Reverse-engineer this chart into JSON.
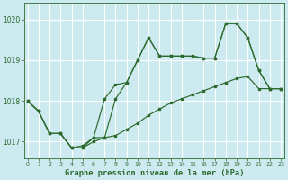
{
  "title": "Graphe pression niveau de la mer (hPa)",
  "background_color": "#cceaf0",
  "grid_color": "#ffffff",
  "line_color": "#2d6a2d",
  "x_ticks": [
    0,
    1,
    2,
    3,
    4,
    5,
    6,
    7,
    8,
    9,
    10,
    11,
    12,
    13,
    14,
    15,
    16,
    17,
    18,
    19,
    20,
    21,
    22,
    23
  ],
  "y_ticks": [
    1017,
    1018,
    1019,
    1020
  ],
  "ylim": [
    1016.6,
    1020.4
  ],
  "xlim": [
    -0.3,
    23.3
  ],
  "series": {
    "line1": [
      1018.0,
      1017.75,
      1017.2,
      1017.2,
      1016.85,
      1016.85,
      1017.1,
      1017.1,
      1018.05,
      1018.45,
      1019.0,
      1019.55,
      1019.1,
      1019.1,
      1019.1,
      1019.1,
      1019.05,
      1019.05,
      1019.9,
      1019.9,
      1019.55,
      1018.75,
      1018.3,
      1018.3
    ],
    "line2": [
      1018.0,
      1017.75,
      1017.2,
      1017.2,
      1016.85,
      1016.9,
      1017.1,
      1018.05,
      1018.4,
      1018.45,
      1019.0,
      1019.55,
      1019.1,
      1019.1,
      1019.1,
      1019.1,
      1019.05,
      1019.05,
      1019.9,
      1019.9,
      1019.55,
      1018.75,
      1018.3,
      1018.3
    ],
    "line3": [
      1018.0,
      1017.75,
      1017.2,
      1017.2,
      1016.85,
      1016.85,
      1017.0,
      1017.1,
      1017.15,
      1017.3,
      1017.45,
      1017.65,
      1017.8,
      1017.95,
      1018.05,
      1018.15,
      1018.25,
      1018.35,
      1018.45,
      1018.55,
      1018.6,
      1018.3,
      1018.3,
      1018.3
    ]
  }
}
